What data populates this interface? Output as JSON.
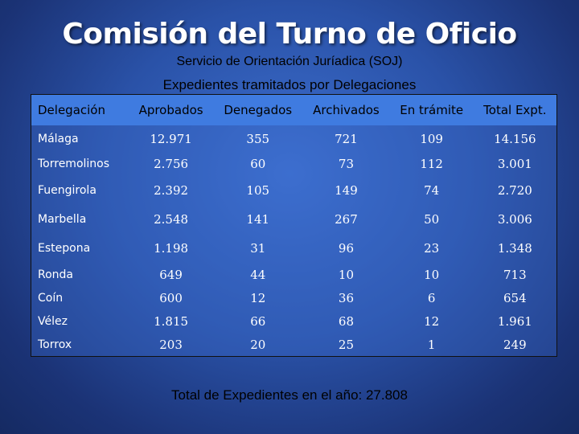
{
  "title": "Comisión del Turno de Oficio",
  "subtitle": "Servicio de Orientación Juríadica (SOJ)",
  "table_caption": "Expedientes tramitados por Delegaciones",
  "table": {
    "headers": [
      "Delegación",
      "Aprobados",
      "Denegados",
      "Archivados",
      "En trámite",
      "Total Expt."
    ],
    "rows": [
      [
        "Málaga",
        "12.971",
        "355",
        "721",
        "109",
        "14.156"
      ],
      [
        "Torremolinos",
        "2.756",
        "60",
        "73",
        "112",
        "3.001"
      ],
      [
        "Fuengirola",
        "2.392",
        "105",
        "149",
        "74",
        "2.720"
      ],
      [
        "Marbella",
        "2.548",
        "141",
        "267",
        "50",
        "3.006"
      ],
      [
        "Estepona",
        "1.198",
        "31",
        "96",
        "23",
        "1.348"
      ],
      [
        "Ronda",
        "649",
        "44",
        "10",
        "10",
        "713"
      ],
      [
        "Coín",
        "600",
        "12",
        "36",
        "6",
        "654"
      ],
      [
        "Vélez",
        "1.815",
        "66",
        "68",
        "12",
        "1.961"
      ],
      [
        "Torrox",
        "203",
        "20",
        "25",
        "1",
        "249"
      ]
    ]
  },
  "footer": "Total de Expedientes en el año: 27.808",
  "colors": {
    "background": "#2a52a8",
    "header_row": "#3f7be0"
  }
}
